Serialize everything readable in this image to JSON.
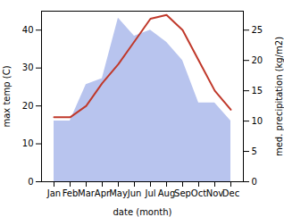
{
  "chart_data": {
    "type": "line",
    "categories": [
      "Jan",
      "Feb",
      "Mar",
      "Apr",
      "May",
      "Jun",
      "Jul",
      "Aug",
      "Sep",
      "Oct",
      "Nov",
      "Dec"
    ],
    "series": [
      {
        "type": "area",
        "color": "#b8c4ee",
        "axis": "y2",
        "values": [
          10,
          10,
          16,
          17,
          27,
          24,
          25,
          23,
          20,
          13,
          13,
          10
        ]
      },
      {
        "type": "line",
        "color": "#c0392b",
        "values": [
          17,
          17,
          20,
          26,
          31,
          37,
          43,
          44,
          40,
          32,
          24,
          19
        ]
      }
    ],
    "xlabel": "date (month)",
    "ylabel": "max temp (C)",
    "y2label": "med. precipitation (kg/m2)",
    "ylim": [
      0,
      45
    ],
    "yticks": [
      0,
      10,
      20,
      30,
      40
    ],
    "y2lim": [
      0,
      28.125
    ],
    "y2ticks": [
      0,
      5,
      10,
      15,
      20,
      25
    ],
    "grid": false
  }
}
